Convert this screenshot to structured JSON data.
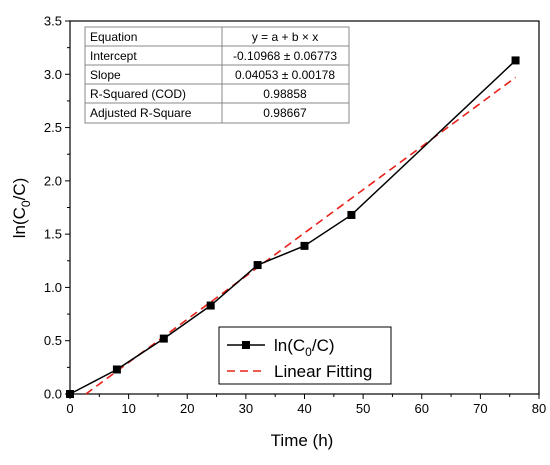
{
  "chart_data": {
    "type": "scatter",
    "xlabel": "Time (h)",
    "ylabel_main": "ln(C",
    "ylabel_sub": "0",
    "ylabel_tail": "/C)",
    "xlim": [
      0,
      80
    ],
    "ylim": [
      0,
      3.5
    ],
    "x_ticks": [
      0,
      10,
      20,
      30,
      40,
      50,
      60,
      70,
      80
    ],
    "x_tick_labels": [
      "0",
      "10",
      "20",
      "30",
      "40",
      "50",
      "60",
      "70",
      "80"
    ],
    "y_ticks": [
      0,
      0.5,
      1.0,
      1.5,
      2.0,
      2.5,
      3.0,
      3.5
    ],
    "y_tick_labels": [
      "0.0",
      "0.5",
      "1.0",
      "1.5",
      "2.0",
      "2.5",
      "3.0",
      "3.5"
    ],
    "grid": false,
    "series": [
      {
        "name": "ln(C0/C)",
        "x": [
          0,
          8,
          16,
          24,
          32,
          40,
          48,
          76
        ],
        "y": [
          0.0,
          0.23,
          0.52,
          0.83,
          1.21,
          1.39,
          1.68,
          3.13
        ],
        "color": "#000000",
        "style": "line-square-markers"
      },
      {
        "name": "Linear Fitting",
        "x": [
          0,
          76
        ],
        "intercept": -0.10968,
        "slope": 0.04053,
        "color": "#e8211a",
        "style": "dashed"
      }
    ],
    "legend": {
      "position": "bottom-right",
      "items": [
        {
          "main": "ln(C",
          "sub": "0",
          "tail": "/C)"
        },
        {
          "main": "Linear Fitting"
        }
      ]
    },
    "stats_table": {
      "rows": [
        {
          "label": "Equation",
          "value": "y = a + b × x"
        },
        {
          "label": "Intercept",
          "value": "-0.10968 ± 0.06773"
        },
        {
          "label": "Slope",
          "value": "0.04053 ± 0.00178"
        },
        {
          "label": "R-Squared (COD)",
          "value": "0.98858"
        },
        {
          "label": "Adjusted R-Square",
          "value": "0.98667"
        }
      ]
    }
  }
}
